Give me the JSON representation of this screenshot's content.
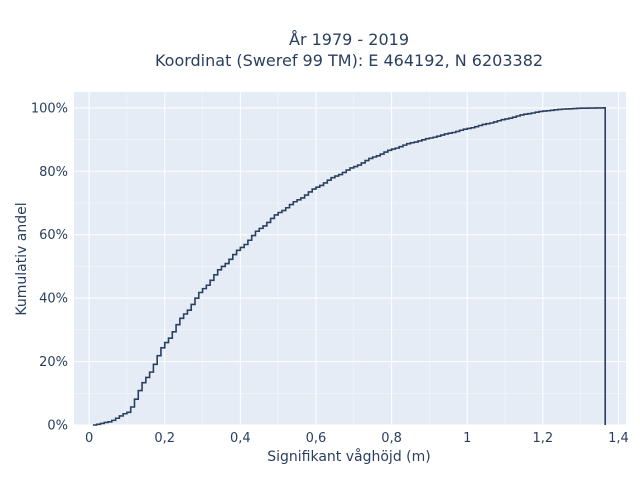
{
  "chart_data": {
    "type": "line",
    "line_shape": "step",
    "title_line1": "År 1979 - 2019",
    "title_line2": "Koordinat (Sweref 99 TM): E 464192, N 6203382",
    "xlabel": "Signifikant våghöjd (m)",
    "ylabel": "Kumulativ andel",
    "xlim": [
      -0.04,
      1.42
    ],
    "ylim": [
      0,
      1.05
    ],
    "x_ticks": [
      0,
      0.2,
      0.4,
      0.6,
      0.8,
      1.0,
      1.2,
      1.4
    ],
    "x_tick_labels": [
      "0",
      "0,2",
      "0,4",
      "0,6",
      "0,8",
      "1",
      "1,2",
      "1,4"
    ],
    "y_ticks": [
      0,
      0.2,
      0.4,
      0.6,
      0.8,
      1.0
    ],
    "y_tick_labels": [
      "0%",
      "20%",
      "40%",
      "60%",
      "80%",
      "100%"
    ],
    "curve_x": [
      0.01,
      0.05,
      0.1,
      0.15,
      0.2,
      0.25,
      0.3,
      0.35,
      0.4,
      0.45,
      0.5,
      0.55,
      0.6,
      0.65,
      0.7,
      0.75,
      0.8,
      0.85,
      0.9,
      0.95,
      1.0,
      1.05,
      1.1,
      1.15,
      1.2,
      1.25,
      1.3,
      1.36
    ],
    "curve_y": [
      0.0,
      0.01,
      0.04,
      0.15,
      0.26,
      0.35,
      0.43,
      0.5,
      0.56,
      0.62,
      0.67,
      0.71,
      0.75,
      0.785,
      0.815,
      0.845,
      0.87,
      0.89,
      0.905,
      0.92,
      0.935,
      0.95,
      0.965,
      0.98,
      0.99,
      0.996,
      0.999,
      1.0
    ],
    "drop_x": 1.365,
    "grid": true,
    "colors": {
      "line": "#2a3f5f",
      "plot_bg": "#e5ecf6",
      "grid": "#ffffff"
    }
  }
}
